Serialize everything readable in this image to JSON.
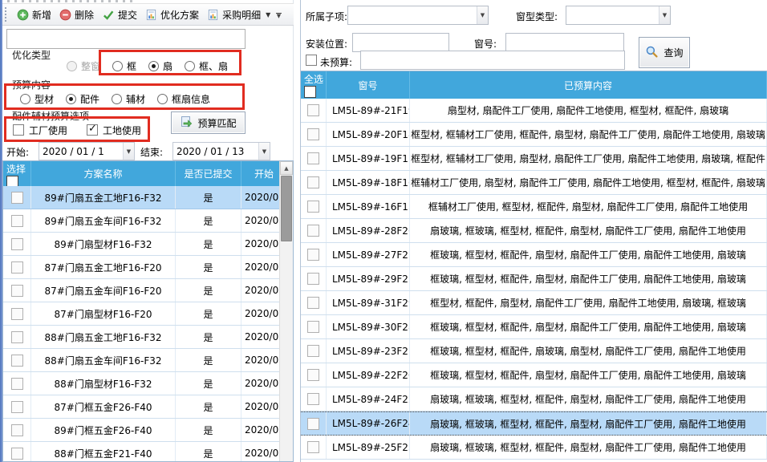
{
  "toolbar": {
    "buttons": [
      {
        "label": "新增"
      },
      {
        "label": "删除"
      },
      {
        "label": "提交"
      },
      {
        "label": "优化方案"
      },
      {
        "label": "采购明细"
      }
    ]
  },
  "left_panel": {
    "search_value": "",
    "opt_type_label": "优化类型",
    "opt_type_options": [
      {
        "label": "整窗",
        "state": "disabled"
      },
      {
        "label": "框",
        "state": "off"
      },
      {
        "label": "扇",
        "state": "on"
      },
      {
        "label": "框、扇",
        "state": "off"
      }
    ],
    "budget_label": "预算内容",
    "budget_options": [
      {
        "label": "型材",
        "state": "off"
      },
      {
        "label": "配件",
        "state": "on"
      },
      {
        "label": "辅材",
        "state": "off"
      },
      {
        "label": "框扇信息",
        "state": "off"
      }
    ],
    "usage_label": "配件辅材预算选项",
    "usage_options": [
      {
        "label": "工厂使用",
        "checked": false
      },
      {
        "label": "工地使用",
        "checked": true
      }
    ],
    "match_button": "预算匹配",
    "date_start_label": "开始:",
    "date_start_value": "2020 / 01 / 1",
    "date_end_label": "结束:",
    "date_end_value": "2020 / 01 / 13",
    "plan_table": {
      "col_select": "选择",
      "col_name": "方案名称",
      "col_submitted": "是否已提交",
      "col_start": "开始",
      "rows": [
        {
          "name": "89#门扇五金工地F16-F32",
          "submitted": "是",
          "start": "2020/0",
          "selected": true
        },
        {
          "name": "89#门扇五金车间F16-F32",
          "submitted": "是",
          "start": "2020/0"
        },
        {
          "name": "89#门扇型材F16-F32",
          "submitted": "是",
          "start": "2020/0"
        },
        {
          "name": "87#门扇五金工地F16-F20",
          "submitted": "是",
          "start": "2020/0"
        },
        {
          "name": "87#门扇五金车间F16-F20",
          "submitted": "是",
          "start": "2020/0"
        },
        {
          "name": "87#门扇型材F16-F20",
          "submitted": "是",
          "start": "2020/0"
        },
        {
          "name": "88#门扇五金工地F16-F32",
          "submitted": "是",
          "start": "2020/0"
        },
        {
          "name": "88#门扇五金车间F16-F32",
          "submitted": "是",
          "start": "2020/0"
        },
        {
          "name": "88#门扇型材F16-F32",
          "submitted": "是",
          "start": "2020/0"
        },
        {
          "name": "87#门框五金F26-F40",
          "submitted": "是",
          "start": "2020/0"
        },
        {
          "name": "89#门框五金F26-F40",
          "submitted": "是",
          "start": "2020/0"
        },
        {
          "name": "88#门框五金F21-F40",
          "submitted": "是",
          "start": "2020/0"
        }
      ]
    }
  },
  "right_panel": {
    "sub_item_label": "所属子项:",
    "window_type_label": "窗型类型:",
    "install_pos_label": "安装位置:",
    "window_no_label": "窗号:",
    "no_budget_label": "未预算:",
    "query_button": "查询",
    "budget_table": {
      "col_select_all": "全选",
      "col_window": "窗号",
      "col_content": "已预算内容",
      "rows": [
        {
          "window": "LM5L-89#-21F19",
          "content": "扇型材, 扇配件工厂使用, 扇配件工地使用, 框型材, 框配件, 扇玻璃"
        },
        {
          "window": "LM5L-89#-20F18",
          "content": "框型材, 框辅材工厂使用, 框配件, 扇型材, 扇配件工厂使用, 扇配件工地使用, 扇玻璃"
        },
        {
          "window": "LM5L-89#-19F17",
          "content": "框型材, 框辅材工厂使用, 扇型材, 扇配件工厂使用, 扇配件工地使用, 扇玻璃, 框配件"
        },
        {
          "window": "LM5L-89#-18F16",
          "content": "框辅材工厂使用, 扇型材, 扇配件工厂使用, 扇配件工地使用, 框型材, 框配件, 扇玻璃"
        },
        {
          "window": "LM5L-89#-16F15",
          "content": "框辅材工厂使用, 框型材, 框配件, 扇型材, 扇配件工厂使用, 扇配件工地使用"
        },
        {
          "window": "LM5L-89#-28F26",
          "content": "扇玻璃, 框玻璃, 框型材, 框配件, 扇型材, 扇配件工厂使用, 扇配件工地使用"
        },
        {
          "window": "LM5L-89#-27F25",
          "content": "框玻璃, 框型材, 框配件, 扇型材, 扇配件工厂使用, 扇配件工地使用, 扇玻璃"
        },
        {
          "window": "LM5L-89#-29F27",
          "content": "框玻璃, 框型材, 框配件, 扇型材, 扇配件工厂使用, 扇配件工地使用, 扇玻璃"
        },
        {
          "window": "LM5L-89#-31F29",
          "content": "框型材, 框配件, 扇型材, 扇配件工厂使用, 扇配件工地使用, 扇玻璃, 框玻璃"
        },
        {
          "window": "LM5L-89#-30F28",
          "content": "框玻璃, 框型材, 框配件, 扇型材, 扇配件工厂使用, 扇配件工地使用, 扇玻璃"
        },
        {
          "window": "LM5L-89#-23F21",
          "content": "框玻璃, 框型材, 框配件, 扇玻璃, 扇型材, 扇配件工厂使用, 扇配件工地使用"
        },
        {
          "window": "LM5L-89#-22F20",
          "content": "框玻璃, 框型材, 框配件, 扇型材, 扇配件工厂使用, 扇配件工地使用, 扇玻璃"
        },
        {
          "window": "LM5L-89#-24F22",
          "content": "扇玻璃, 框玻璃, 框型材, 框配件, 扇型材, 扇配件工厂使用, 扇配件工地使用"
        },
        {
          "window": "LM5L-89#-26F24",
          "content": "扇玻璃, 框玻璃, 框型材, 框配件, 扇型材, 扇配件工厂使用, 扇配件工地使用",
          "selected": true
        },
        {
          "window": "LM5L-89#-25F23",
          "content": "扇玻璃, 框玻璃, 框型材, 框配件, 扇型材, 扇配件工厂使用, 扇配件工地使用"
        }
      ]
    }
  },
  "colors": {
    "header_blue": "#41a7dc",
    "selected_row": "#b9daf7",
    "highlight_red": "#e12c20"
  }
}
